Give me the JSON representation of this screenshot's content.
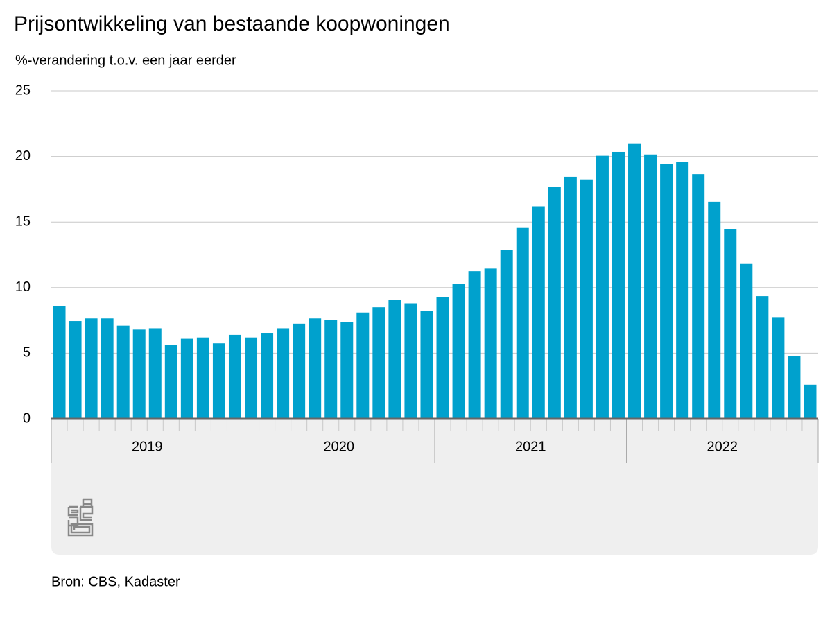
{
  "chart_data": {
    "type": "bar",
    "title": "Prijsontwikkeling van bestaande koopwoningen",
    "subtitle": "%-verandering t.o.v. een jaar eerder",
    "source": "Bron: CBS, Kadaster",
    "category_groups": [
      "2019",
      "2020",
      "2021",
      "2022"
    ],
    "categories": [
      null,
      null,
      null,
      null,
      null,
      null,
      null,
      null,
      null,
      null,
      null,
      null,
      null,
      null,
      null,
      null,
      null,
      null,
      null,
      null,
      null,
      null,
      null,
      null,
      null,
      null,
      null,
      null,
      null,
      null,
      null,
      null,
      null,
      null,
      null,
      null,
      null,
      null,
      null,
      null,
      null,
      null,
      null,
      null,
      null,
      null,
      null,
      null
    ],
    "values": [
      8.6,
      7.45,
      7.65,
      7.65,
      7.1,
      6.8,
      6.9,
      5.65,
      6.1,
      6.2,
      5.75,
      6.4,
      6.2,
      6.5,
      6.9,
      7.25,
      7.65,
      7.55,
      7.35,
      8.1,
      8.5,
      9.05,
      8.8,
      8.2,
      9.25,
      10.3,
      11.25,
      11.45,
      12.85,
      14.55,
      16.2,
      17.7,
      18.45,
      18.25,
      20.05,
      20.35,
      21.0,
      20.15,
      19.4,
      19.6,
      18.65,
      16.55,
      14.45,
      11.8,
      9.35,
      7.75,
      4.8,
      2.6
    ],
    "color": "#00a1cd",
    "ylim": [
      0,
      25
    ],
    "yticks": [
      0,
      5,
      10,
      15,
      20,
      25
    ],
    "grid": true
  }
}
